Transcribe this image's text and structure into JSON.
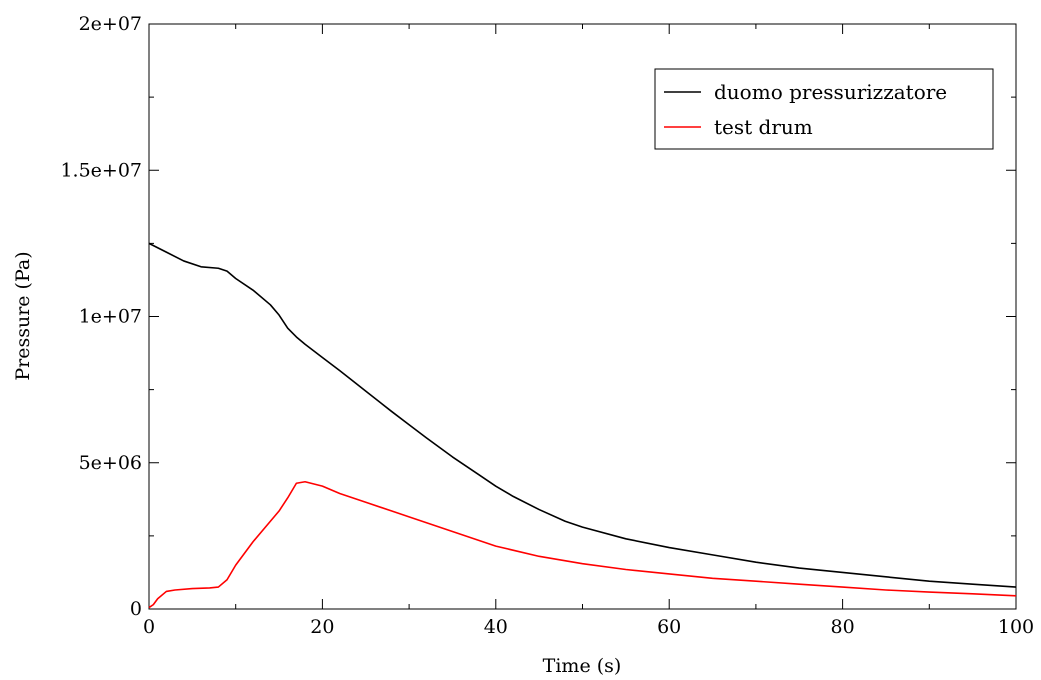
{
  "chart_data": {
    "type": "line",
    "title": "",
    "xlabel": "Time (s)",
    "ylabel": "Pressure (Pa)",
    "xlim": [
      0,
      100
    ],
    "ylim": [
      0,
      20000000
    ],
    "x_ticks": [
      0,
      20,
      40,
      60,
      80,
      100
    ],
    "x_tick_labels": [
      "0",
      "20",
      "40",
      "60",
      "80",
      "100"
    ],
    "y_ticks": [
      0,
      5000000,
      10000000,
      15000000,
      20000000
    ],
    "y_tick_labels": [
      "0",
      "5e+06",
      "1e+07",
      "1.5e+07",
      "2e+07"
    ],
    "grid": false,
    "legend_position": "top-right",
    "series": [
      {
        "name": "duomo pressurizzatore",
        "color": "#000000",
        "points": [
          [
            0,
            12500000
          ],
          [
            2,
            12200000
          ],
          [
            4,
            11900000
          ],
          [
            6,
            11700000
          ],
          [
            8,
            11650000
          ],
          [
            9,
            11550000
          ],
          [
            10,
            11300000
          ],
          [
            12,
            10900000
          ],
          [
            14,
            10400000
          ],
          [
            15,
            10050000
          ],
          [
            16,
            9600000
          ],
          [
            17,
            9300000
          ],
          [
            18,
            9050000
          ],
          [
            20,
            8600000
          ],
          [
            22,
            8150000
          ],
          [
            25,
            7450000
          ],
          [
            28,
            6750000
          ],
          [
            30,
            6300000
          ],
          [
            32,
            5850000
          ],
          [
            35,
            5200000
          ],
          [
            38,
            4600000
          ],
          [
            40,
            4200000
          ],
          [
            42,
            3850000
          ],
          [
            45,
            3400000
          ],
          [
            48,
            3000000
          ],
          [
            50,
            2800000
          ],
          [
            55,
            2400000
          ],
          [
            60,
            2100000
          ],
          [
            65,
            1850000
          ],
          [
            70,
            1600000
          ],
          [
            75,
            1400000
          ],
          [
            80,
            1250000
          ],
          [
            85,
            1100000
          ],
          [
            90,
            950000
          ],
          [
            95,
            850000
          ],
          [
            100,
            750000
          ]
        ]
      },
      {
        "name": "test drum",
        "color": "#ff0000",
        "points": [
          [
            0,
            50000
          ],
          [
            0.5,
            150000
          ],
          [
            1,
            350000
          ],
          [
            2,
            600000
          ],
          [
            3,
            650000
          ],
          [
            5,
            700000
          ],
          [
            7,
            720000
          ],
          [
            8,
            750000
          ],
          [
            9,
            1000000
          ],
          [
            10,
            1500000
          ],
          [
            12,
            2300000
          ],
          [
            14,
            3000000
          ],
          [
            15,
            3350000
          ],
          [
            16,
            3800000
          ],
          [
            17,
            4300000
          ],
          [
            18,
            4350000
          ],
          [
            20,
            4200000
          ],
          [
            22,
            3950000
          ],
          [
            25,
            3650000
          ],
          [
            28,
            3350000
          ],
          [
            30,
            3150000
          ],
          [
            35,
            2650000
          ],
          [
            40,
            2150000
          ],
          [
            45,
            1800000
          ],
          [
            50,
            1550000
          ],
          [
            55,
            1350000
          ],
          [
            60,
            1200000
          ],
          [
            65,
            1050000
          ],
          [
            70,
            950000
          ],
          [
            75,
            850000
          ],
          [
            80,
            750000
          ],
          [
            85,
            650000
          ],
          [
            90,
            580000
          ],
          [
            95,
            520000
          ],
          [
            100,
            450000
          ]
        ]
      }
    ]
  }
}
